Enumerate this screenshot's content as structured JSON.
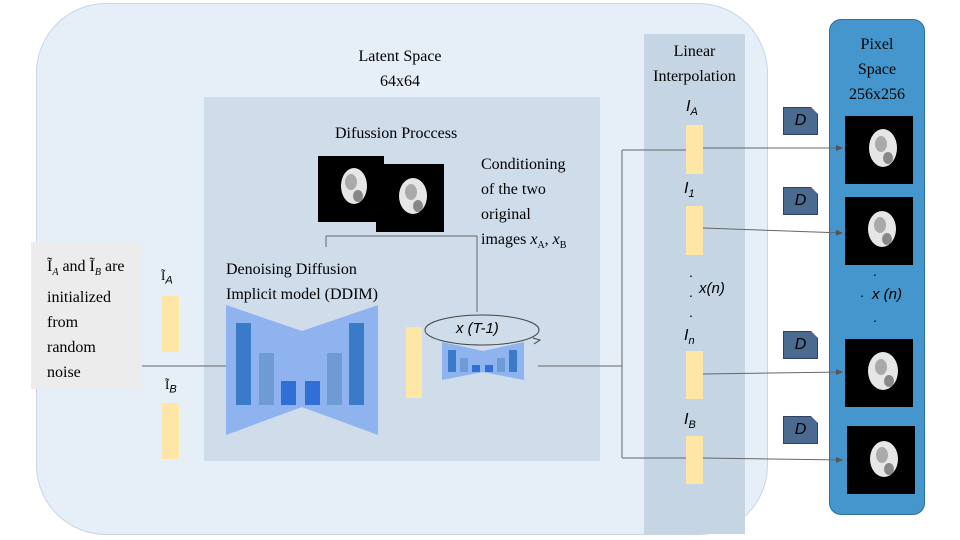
{
  "latent_space": {
    "title": "Latent Space",
    "size": "64x64"
  },
  "diffusion": {
    "title": "Difussion Proccess"
  },
  "conditioning": {
    "line1": "Conditioning",
    "line2": "of the two",
    "line3": "original",
    "line4_prefix": "images",
    "var_a": "x",
    "sub_a": "A",
    "sep": ",",
    "var_b": "x",
    "sub_b": "B"
  },
  "ddim": {
    "line1": "Denoising Diffusion",
    "line2": "Implicit model (DDIM)"
  },
  "loop": {
    "label": "x (T-1)"
  },
  "noise": {
    "sym_a": "Ĩ",
    "sub_a": "A",
    "and": "and",
    "sym_b": "Ĩ",
    "sub_b": "B",
    "are": "are",
    "line2": "initialized",
    "line3": "from",
    "line4": "random",
    "line5": "noise"
  },
  "latent_left": {
    "sym_a": "Ĩ",
    "sub_a": "A",
    "sym_b": "Ĩ",
    "sub_b": "B"
  },
  "interpolation": {
    "title_line1": "Linear",
    "title_line2": "Interpolation",
    "labels": [
      {
        "sym": "I",
        "sub": "A"
      },
      {
        "sym": "I",
        "sub": "1"
      },
      {
        "sym": "I",
        "sub": "n"
      },
      {
        "sym": "I",
        "sub": "B"
      }
    ],
    "dots_label": "x(n)"
  },
  "pixel_space": {
    "line1": "Pixel",
    "line2": "Space",
    "line3": "256x256",
    "dots_label": "x (n)"
  },
  "decoder": {
    "label": "D"
  },
  "colors": {
    "latent_bg": "#e6eef8",
    "inner_box": "#cfdcea",
    "interp_col": "#c6d5e4",
    "pixel_col": "#4596cc",
    "latent_vector": "#fde6a6",
    "decoder_box": "#4a6a8f",
    "unet_outer": "#8fb3ee",
    "unet_bar_dark": "#3a7bc8",
    "unet_bar_light": "#6e9bd4",
    "unet_bar_mid": "#2f6fd6"
  }
}
